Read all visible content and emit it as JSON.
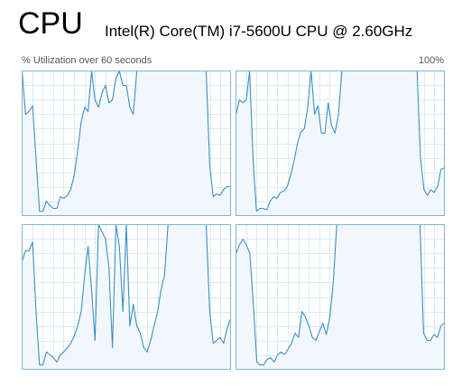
{
  "header": {
    "title": "CPU",
    "model": "Intel(R) Core(TM) i7-5600U CPU @ 2.60GHz",
    "utilization_label": "% Utilization over 60 seconds",
    "max_label": "100%"
  },
  "colors": {
    "border": "#7fb6d6",
    "grid": "#d9eaf4",
    "line": "#3e8fc2",
    "fill": "#f1f7fc"
  },
  "chart_data": [
    {
      "type": "area",
      "name": "",
      "ylim": [
        0,
        100
      ],
      "xlim": [
        0,
        60
      ],
      "values": [
        100,
        70,
        72,
        76,
        40,
        3,
        3,
        10,
        7,
        5,
        5,
        13,
        12,
        14,
        18,
        28,
        45,
        65,
        75,
        72,
        100,
        80,
        75,
        85,
        90,
        78,
        80,
        95,
        100,
        90,
        90,
        75,
        70,
        100,
        100,
        100,
        100,
        100,
        100,
        100,
        100,
        100,
        100,
        100,
        100,
        100,
        100,
        100,
        100,
        100,
        100,
        100,
        100,
        100,
        35,
        13,
        15,
        14,
        18,
        20,
        20
      ]
    },
    {
      "type": "area",
      "name": "",
      "ylim": [
        0,
        100
      ],
      "xlim": [
        0,
        60
      ],
      "values": [
        70,
        80,
        78,
        80,
        100,
        40,
        3,
        5,
        5,
        4,
        10,
        13,
        12,
        16,
        17,
        20,
        28,
        38,
        50,
        58,
        60,
        75,
        100,
        70,
        76,
        57,
        57,
        78,
        62,
        57,
        70,
        100,
        100,
        100,
        100,
        100,
        100,
        100,
        100,
        100,
        100,
        100,
        100,
        100,
        100,
        100,
        100,
        100,
        100,
        100,
        100,
        100,
        100,
        100,
        40,
        18,
        14,
        18,
        16,
        20,
        32,
        33
      ]
    },
    {
      "type": "area",
      "name": "",
      "ylim": [
        0,
        100
      ],
      "xlim": [
        0,
        60
      ],
      "values": [
        75,
        82,
        82,
        88,
        40,
        3,
        3,
        12,
        10,
        8,
        5,
        10,
        12,
        15,
        18,
        23,
        30,
        40,
        65,
        85,
        55,
        20,
        100,
        95,
        90,
        70,
        15,
        100,
        85,
        40,
        100,
        30,
        45,
        30,
        25,
        15,
        12,
        20,
        30,
        40,
        55,
        65,
        100,
        100,
        100,
        100,
        100,
        100,
        100,
        100,
        100,
        100,
        100,
        100,
        40,
        18,
        20,
        22,
        18,
        28,
        35
      ]
    },
    {
      "type": "area",
      "name": "",
      "ylim": [
        0,
        100
      ],
      "xlim": [
        0,
        60
      ],
      "values": [
        80,
        86,
        90,
        86,
        80,
        45,
        5,
        3,
        3,
        7,
        8,
        5,
        10,
        12,
        10,
        14,
        18,
        25,
        22,
        40,
        36,
        30,
        22,
        20,
        26,
        32,
        24,
        36,
        60,
        100,
        100,
        100,
        100,
        100,
        100,
        100,
        100,
        100,
        100,
        100,
        100,
        100,
        100,
        100,
        100,
        100,
        100,
        100,
        100,
        100,
        100,
        100,
        100,
        100,
        25,
        20,
        20,
        24,
        22,
        30,
        32
      ]
    }
  ]
}
